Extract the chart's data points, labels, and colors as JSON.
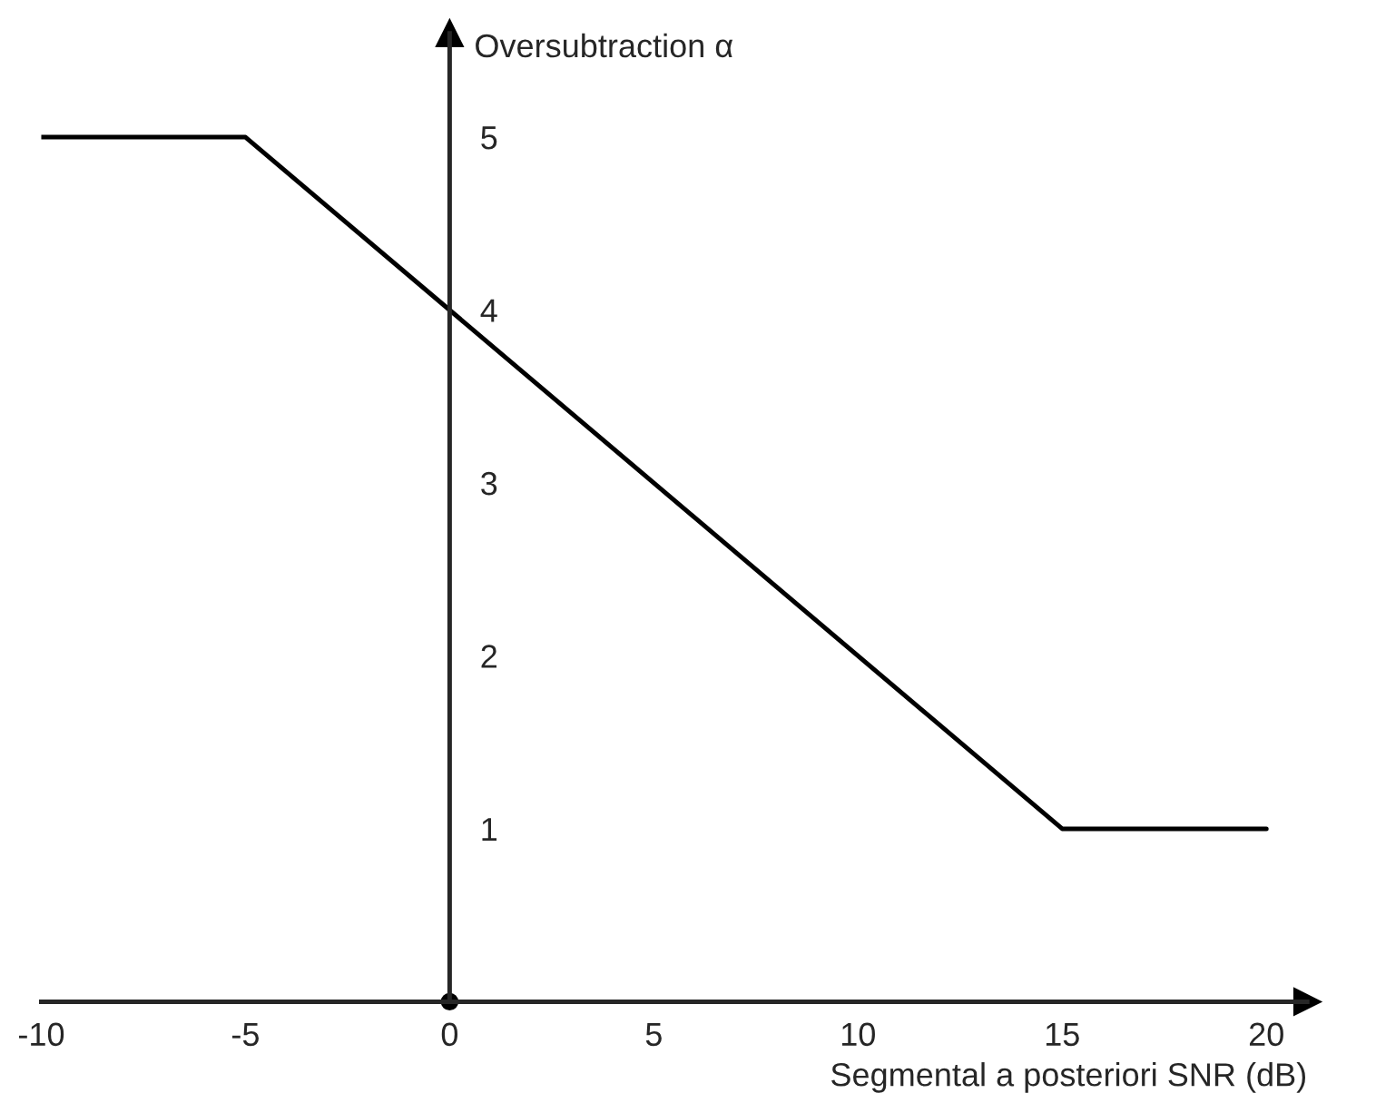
{
  "chart_data": {
    "type": "line",
    "xlabel": "Segmental a posteriori SNR (dB)",
    "ylabel": "Oversubtraction α",
    "x": [
      -10,
      -5,
      15,
      20
    ],
    "series": [
      {
        "color": "#000000",
        "values": [
          5,
          5,
          1,
          1
        ]
      }
    ],
    "xlim": [
      -10,
      21
    ],
    "ylim": [
      0,
      5.6
    ],
    "xticks": [
      -10,
      -5,
      0,
      5,
      10,
      15,
      20
    ],
    "yticks": [
      1,
      2,
      3,
      4,
      5
    ],
    "grid": false,
    "legend": false
  }
}
